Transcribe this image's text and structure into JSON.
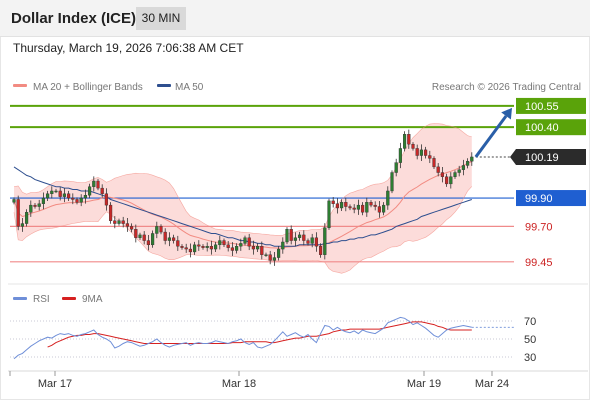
{
  "header": {
    "instrument": "Dollar Index (ICE)",
    "timeframe": "30 MIN"
  },
  "timestamp": "Thursday, March 19, 2026 7:06:38 AM CET",
  "legend": {
    "bollinger": "MA 20 + Bollinger Bands",
    "ma50": "MA 50",
    "credit": "Research © 2026 Trading Central",
    "rsi": "RSI",
    "rsi_ma": "9MA"
  },
  "colors": {
    "bollinger": "#f28b82",
    "band_fill": "#fbd0cd",
    "ma50": "#2e4f8f",
    "resistance": "#5aa30a",
    "support": "#f08a8a",
    "pivot": "#1f5fd1",
    "bullish": "#2e7d32",
    "bearish": "#c62828",
    "rsi": "#6f8fd8",
    "rsi_ma": "#d62020"
  },
  "chart_data": [
    {
      "type": "candlestick",
      "y_range": [
        99.35,
        100.62
      ],
      "x_labels": [
        "Mar 17",
        "Mar 18",
        "Mar 19",
        "Mar 24"
      ],
      "levels": [
        {
          "value": 100.55,
          "label": "100.55",
          "kind": "resistance"
        },
        {
          "value": 100.4,
          "label": "100.40",
          "kind": "resistance"
        },
        {
          "value": 100.19,
          "label": "100.19",
          "kind": "last"
        },
        {
          "value": 99.9,
          "label": "99.90",
          "kind": "pivot"
        },
        {
          "value": 99.7,
          "label": "99.70",
          "kind": "support"
        },
        {
          "value": 99.45,
          "label": "99.45",
          "kind": "support"
        }
      ],
      "close": [
        99.89,
        99.7,
        99.72,
        99.8,
        99.85,
        99.84,
        99.86,
        99.9,
        99.93,
        99.95,
        99.95,
        99.91,
        99.93,
        99.9,
        99.89,
        99.87,
        99.9,
        99.92,
        99.98,
        100.02,
        99.97,
        99.93,
        99.85,
        99.74,
        99.72,
        99.74,
        99.72,
        99.7,
        99.68,
        99.62,
        99.64,
        99.6,
        99.57,
        99.65,
        99.7,
        99.66,
        99.6,
        99.62,
        99.6,
        99.56,
        99.55,
        99.54,
        99.52,
        99.57,
        99.56,
        99.55,
        99.56,
        99.54,
        99.57,
        99.6,
        99.57,
        99.55,
        99.53,
        99.56,
        99.58,
        99.62,
        99.56,
        99.54,
        99.56,
        99.5,
        99.5,
        99.46,
        99.48,
        99.54,
        99.59,
        99.68,
        99.6,
        99.62,
        99.64,
        99.6,
        99.58,
        99.62,
        99.56,
        99.5,
        99.69,
        99.88,
        99.86,
        99.83,
        99.87,
        99.84,
        99.83,
        99.82,
        99.85,
        99.8,
        99.87,
        99.85,
        99.84,
        99.8,
        99.85,
        99.95,
        100.08,
        100.15,
        100.25,
        100.35,
        100.28,
        100.25,
        100.2,
        100.24,
        100.2,
        100.18,
        100.12,
        100.08,
        100.05,
        100.0,
        100.05,
        100.08,
        100.1,
        100.13,
        100.16,
        100.19
      ],
      "ma50": [
        100.12,
        100.1,
        100.08,
        100.06,
        100.05,
        100.03,
        100.02,
        100.01,
        100.0,
        99.99,
        99.98,
        99.98,
        99.97,
        99.97,
        99.96,
        99.96,
        99.95,
        99.95,
        99.95,
        99.94,
        99.93,
        99.92,
        99.91,
        99.89,
        99.88,
        99.87,
        99.86,
        99.85,
        99.84,
        99.83,
        99.82,
        99.81,
        99.8,
        99.79,
        99.78,
        99.77,
        99.76,
        99.75,
        99.74,
        99.73,
        99.72,
        99.71,
        99.7,
        99.69,
        99.68,
        99.67,
        99.66,
        99.65,
        99.65,
        99.64,
        99.63,
        99.62,
        99.62,
        99.61,
        99.6,
        99.6,
        99.59,
        99.59,
        99.58,
        99.58,
        99.57,
        99.57,
        99.56,
        99.56,
        99.56,
        99.56,
        99.56,
        99.56,
        99.57,
        99.57,
        99.57,
        99.57,
        99.57,
        99.57,
        99.58,
        99.58,
        99.59,
        99.59,
        99.6,
        99.6,
        99.61,
        99.61,
        99.62,
        99.62,
        99.63,
        99.64,
        99.64,
        99.65,
        99.66,
        99.67,
        99.68,
        99.7,
        99.71,
        99.72,
        99.73,
        99.74,
        99.75,
        99.77,
        99.78,
        99.79,
        99.8,
        99.81,
        99.82,
        99.83,
        99.84,
        99.85,
        99.86,
        99.87,
        99.88,
        99.89
      ]
    },
    {
      "type": "line",
      "name": "RSI",
      "y_range": [
        20,
        80
      ],
      "y_ticks": [
        70,
        50,
        30
      ],
      "y_tick_labels": [
        "70",
        "50",
        "30"
      ],
      "series": [
        {
          "name": "RSI",
          "values": [
            28,
            32,
            34,
            38,
            42,
            45,
            48,
            50,
            52,
            51,
            54,
            56,
            55,
            56,
            54,
            53,
            55,
            56,
            58,
            60,
            55,
            52,
            50,
            47,
            40,
            42,
            45,
            47,
            46,
            44,
            42,
            43,
            45,
            47,
            50,
            46,
            43,
            41,
            43,
            44,
            45,
            46,
            43,
            45,
            46,
            45,
            45,
            46,
            48,
            47,
            46,
            45,
            47,
            48,
            50,
            46,
            44,
            46,
            41,
            40,
            42,
            44,
            48,
            53,
            58,
            53,
            55,
            57,
            54,
            52,
            55,
            50,
            46,
            56,
            65,
            64,
            60,
            63,
            60,
            58,
            57,
            59,
            56,
            60,
            58,
            57,
            56,
            59,
            62,
            68,
            70,
            72,
            74,
            73,
            70,
            66,
            68,
            65,
            62,
            58,
            54,
            52,
            56,
            60,
            62,
            63,
            64,
            65,
            64,
            63
          ]
        },
        {
          "name": "9MA",
          "values": [
            null,
            null,
            null,
            null,
            null,
            null,
            null,
            null,
            41,
            43,
            46,
            48,
            50,
            52,
            53,
            54,
            54,
            55,
            55,
            56,
            56,
            55,
            54,
            53,
            52,
            51,
            50,
            49,
            48,
            47,
            46,
            45,
            45,
            45,
            45,
            45,
            45,
            45,
            45,
            45,
            45,
            45,
            45,
            45,
            45,
            45,
            45,
            45,
            45,
            45,
            45,
            45,
            46,
            46,
            46,
            47,
            47,
            47,
            47,
            47,
            47,
            46,
            46,
            47,
            48,
            49,
            50,
            51,
            51,
            52,
            53,
            53,
            53,
            54,
            55,
            56,
            58,
            59,
            60,
            60,
            61,
            61,
            61,
            61,
            61,
            61,
            61,
            61,
            62,
            63,
            64,
            65,
            66,
            67,
            68,
            69,
            69,
            69,
            68,
            67,
            66,
            64,
            63,
            61,
            60,
            60,
            60,
            60,
            60,
            60
          ]
        }
      ]
    }
  ]
}
